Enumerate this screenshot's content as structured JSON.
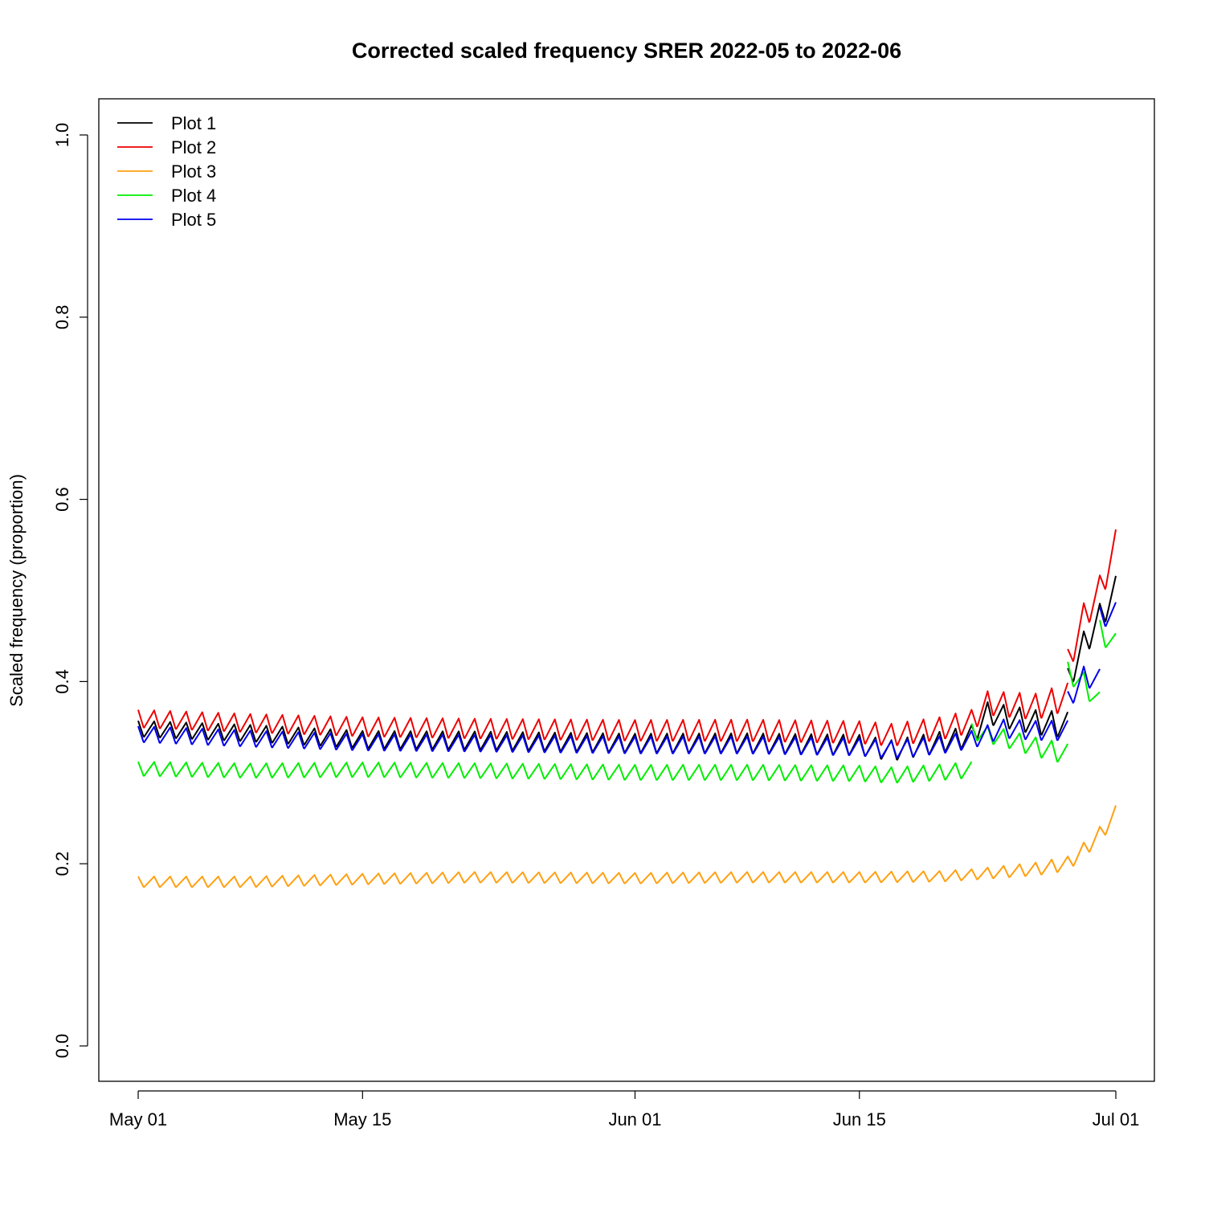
{
  "chart_data": {
    "type": "line",
    "title": "Corrected scaled frequency SRER 2022-05 to 2022-06",
    "xlabel": "",
    "ylabel": "Scaled frequency (proportion)",
    "xlim": [
      "2022-05-01",
      "2022-07-01"
    ],
    "ylim": [
      0.0,
      1.0
    ],
    "x_ticks": [
      {
        "value": "2022-05-01",
        "label": "May 01"
      },
      {
        "value": "2022-05-15",
        "label": "May 15"
      },
      {
        "value": "2022-06-01",
        "label": "Jun 01"
      },
      {
        "value": "2022-06-15",
        "label": "Jun 15"
      },
      {
        "value": "2022-07-01",
        "label": "Jul 01"
      }
    ],
    "y_ticks": [
      {
        "value": 0.0,
        "label": "0.0"
      },
      {
        "value": 0.2,
        "label": "0.2"
      },
      {
        "value": 0.4,
        "label": "0.4"
      },
      {
        "value": 0.6,
        "label": "0.6"
      },
      {
        "value": 0.8,
        "label": "0.8"
      },
      {
        "value": 1.0,
        "label": "1.0"
      }
    ],
    "grid": false,
    "legend_position": "top-left",
    "series": [
      {
        "name": "Plot 1",
        "color": "#000000",
        "daily_cycle": "sawtooth",
        "points": [
          {
            "date": "2022-05-01",
            "y": 0.348
          },
          {
            "date": "2022-05-08",
            "y": 0.343
          },
          {
            "date": "2022-05-15",
            "y": 0.336
          },
          {
            "date": "2022-05-22",
            "y": 0.335
          },
          {
            "date": "2022-06-01",
            "y": 0.332
          },
          {
            "date": "2022-06-08",
            "y": 0.332
          },
          {
            "date": "2022-06-15",
            "y": 0.33
          },
          {
            "date": "2022-06-17",
            "y": 0.324
          },
          {
            "date": "2022-06-20",
            "y": 0.333
          },
          {
            "date": "2022-06-22",
            "y": 0.34
          },
          {
            "date": "2022-06-23",
            "y": 0.365
          },
          {
            "date": "2022-06-26",
            "y": 0.355
          },
          {
            "date": "2022-06-28",
            "y": 0.352
          },
          {
            "date": "2022-06-28",
            "y": null
          },
          {
            "date": "2022-06-28",
            "y": 0.4
          },
          {
            "date": "2022-06-29",
            "y": 0.44
          },
          {
            "date": "2022-06-30",
            "y": 0.47
          },
          {
            "date": "2022-07-01",
            "y": 0.5
          },
          {
            "date": "2022-07-01",
            "y": 0.53
          }
        ],
        "amplitude": [
          {
            "date": "2022-05-01",
            "a": 0.018
          },
          {
            "date": "2022-06-22",
            "a": 0.024
          },
          {
            "date": "2022-07-01",
            "a": 0.032
          }
        ]
      },
      {
        "name": "Plot 2",
        "color": "#ee0000",
        "daily_cycle": "sawtooth",
        "points": [
          {
            "date": "2022-05-01",
            "y": 0.359
          },
          {
            "date": "2022-05-08",
            "y": 0.354
          },
          {
            "date": "2022-05-15",
            "y": 0.35
          },
          {
            "date": "2022-05-22",
            "y": 0.348
          },
          {
            "date": "2022-06-01",
            "y": 0.346
          },
          {
            "date": "2022-06-08",
            "y": 0.346
          },
          {
            "date": "2022-06-15",
            "y": 0.344
          },
          {
            "date": "2022-06-17",
            "y": 0.341
          },
          {
            "date": "2022-06-20",
            "y": 0.348
          },
          {
            "date": "2022-06-22",
            "y": 0.356
          },
          {
            "date": "2022-06-23",
            "y": 0.376
          },
          {
            "date": "2022-06-26",
            "y": 0.372
          },
          {
            "date": "2022-06-28",
            "y": 0.383
          },
          {
            "date": "2022-06-28",
            "y": null
          },
          {
            "date": "2022-06-28",
            "y": 0.42
          },
          {
            "date": "2022-06-29",
            "y": 0.47
          },
          {
            "date": "2022-06-30",
            "y": 0.5
          },
          {
            "date": "2022-07-01",
            "y": 0.55
          },
          {
            "date": "2022-07-01",
            "y": 0.575
          }
        ],
        "amplitude": [
          {
            "date": "2022-05-01",
            "a": 0.02
          },
          {
            "date": "2022-06-22",
            "a": 0.026
          },
          {
            "date": "2022-07-01",
            "a": 0.034
          }
        ]
      },
      {
        "name": "Plot 3",
        "color": "#ffa010",
        "daily_cycle": "sawtooth",
        "points": [
          {
            "date": "2022-05-01",
            "y": 0.18
          },
          {
            "date": "2022-05-08",
            "y": 0.18
          },
          {
            "date": "2022-05-15",
            "y": 0.183
          },
          {
            "date": "2022-05-22",
            "y": 0.185
          },
          {
            "date": "2022-06-01",
            "y": 0.184
          },
          {
            "date": "2022-06-08",
            "y": 0.185
          },
          {
            "date": "2022-06-15",
            "y": 0.185
          },
          {
            "date": "2022-06-20",
            "y": 0.186
          },
          {
            "date": "2022-06-22",
            "y": 0.188
          },
          {
            "date": "2022-06-26",
            "y": 0.194
          },
          {
            "date": "2022-06-28",
            "y": 0.2
          },
          {
            "date": "2022-06-29",
            "y": 0.215
          },
          {
            "date": "2022-06-30",
            "y": 0.232
          },
          {
            "date": "2022-07-01",
            "y": 0.255
          },
          {
            "date": "2022-07-01",
            "y": 0.277
          }
        ],
        "amplitude": [
          {
            "date": "2022-05-01",
            "a": 0.012
          },
          {
            "date": "2022-06-22",
            "a": 0.012
          },
          {
            "date": "2022-07-01",
            "a": 0.018
          }
        ]
      },
      {
        "name": "Plot 4",
        "color": "#00ee00",
        "daily_cycle": "sawtooth",
        "points": [
          {
            "date": "2022-05-01",
            "y": 0.304
          },
          {
            "date": "2022-05-08",
            "y": 0.302
          },
          {
            "date": "2022-05-15",
            "y": 0.303
          },
          {
            "date": "2022-05-22",
            "y": 0.302
          },
          {
            "date": "2022-06-01",
            "y": 0.3
          },
          {
            "date": "2022-06-08",
            "y": 0.3
          },
          {
            "date": "2022-06-15",
            "y": 0.299
          },
          {
            "date": "2022-06-17",
            "y": 0.297
          },
          {
            "date": "2022-06-20",
            "y": 0.3
          },
          {
            "date": "2022-06-22",
            "y": 0.303
          },
          {
            "date": "2022-06-22",
            "y": null
          },
          {
            "date": "2022-06-22",
            "y": 0.345
          },
          {
            "date": "2022-06-24",
            "y": 0.338
          },
          {
            "date": "2022-06-26",
            "y": 0.328
          },
          {
            "date": "2022-06-28",
            "y": 0.32
          },
          {
            "date": "2022-06-28",
            "y": null
          },
          {
            "date": "2022-06-28",
            "y": 0.41
          },
          {
            "date": "2022-06-29",
            "y": 0.398
          },
          {
            "date": "2022-06-30",
            "y": 0.376
          },
          {
            "date": "2022-06-30",
            "y": null
          },
          {
            "date": "2022-06-30",
            "y": 0.455
          },
          {
            "date": "2022-07-01",
            "y": 0.44
          },
          {
            "date": "2022-07-01",
            "y": 0.432
          }
        ],
        "amplitude": [
          {
            "date": "2022-05-01",
            "a": 0.016
          },
          {
            "date": "2022-06-22",
            "a": 0.018
          },
          {
            "date": "2022-07-01",
            "a": 0.026
          }
        ]
      },
      {
        "name": "Plot 5",
        "color": "#0000ee",
        "daily_cycle": "sawtooth",
        "points": [
          {
            "date": "2022-05-01",
            "y": 0.342
          },
          {
            "date": "2022-05-08",
            "y": 0.337
          },
          {
            "date": "2022-05-15",
            "y": 0.333
          },
          {
            "date": "2022-05-22",
            "y": 0.332
          },
          {
            "date": "2022-06-01",
            "y": 0.33
          },
          {
            "date": "2022-06-08",
            "y": 0.33
          },
          {
            "date": "2022-06-15",
            "y": 0.328
          },
          {
            "date": "2022-06-17",
            "y": 0.325
          },
          {
            "date": "2022-06-20",
            "y": 0.33
          },
          {
            "date": "2022-06-22",
            "y": 0.336
          },
          {
            "date": "2022-06-24",
            "y": 0.348
          },
          {
            "date": "2022-06-26",
            "y": 0.346
          },
          {
            "date": "2022-06-28",
            "y": 0.346
          },
          {
            "date": "2022-06-28",
            "y": null
          },
          {
            "date": "2022-06-28",
            "y": 0.378
          },
          {
            "date": "2022-06-29",
            "y": 0.405
          },
          {
            "date": "2022-06-30",
            "y": 0.402
          },
          {
            "date": "2022-06-30",
            "y": null
          },
          {
            "date": "2022-06-30",
            "y": 0.47
          },
          {
            "date": "2022-07-01",
            "y": 0.475
          },
          {
            "date": "2022-07-01",
            "y": 0.492
          }
        ],
        "amplitude": [
          {
            "date": "2022-05-01",
            "a": 0.018
          },
          {
            "date": "2022-06-22",
            "a": 0.02
          },
          {
            "date": "2022-07-01",
            "a": 0.024
          }
        ]
      }
    ]
  }
}
